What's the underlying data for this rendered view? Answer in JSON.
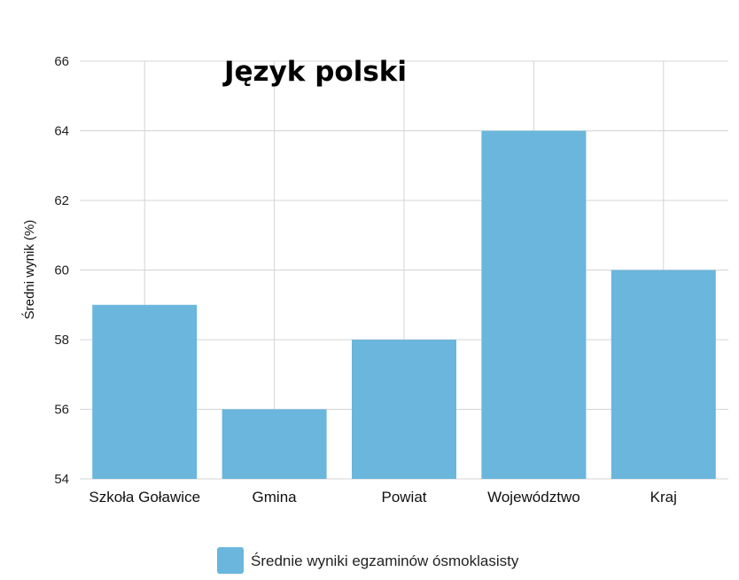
{
  "chart_data": {
    "type": "bar",
    "title": "Język polski",
    "ylabel": "Średni wynik (%)",
    "xlabel": "",
    "categories": [
      "Szkoła Goławice",
      "Gmina",
      "Powiat",
      "Województwo",
      "Kraj"
    ],
    "series": [
      {
        "name": "Średnie wyniki egzaminów ósmoklasisty",
        "values": [
          59,
          56,
          58,
          64,
          60
        ],
        "color": "#6bb6dc"
      }
    ],
    "ylim": [
      54,
      66
    ],
    "yticks": [
      54,
      56,
      58,
      60,
      62,
      64,
      66
    ],
    "grid": true,
    "legend_position": "bottom-center"
  }
}
